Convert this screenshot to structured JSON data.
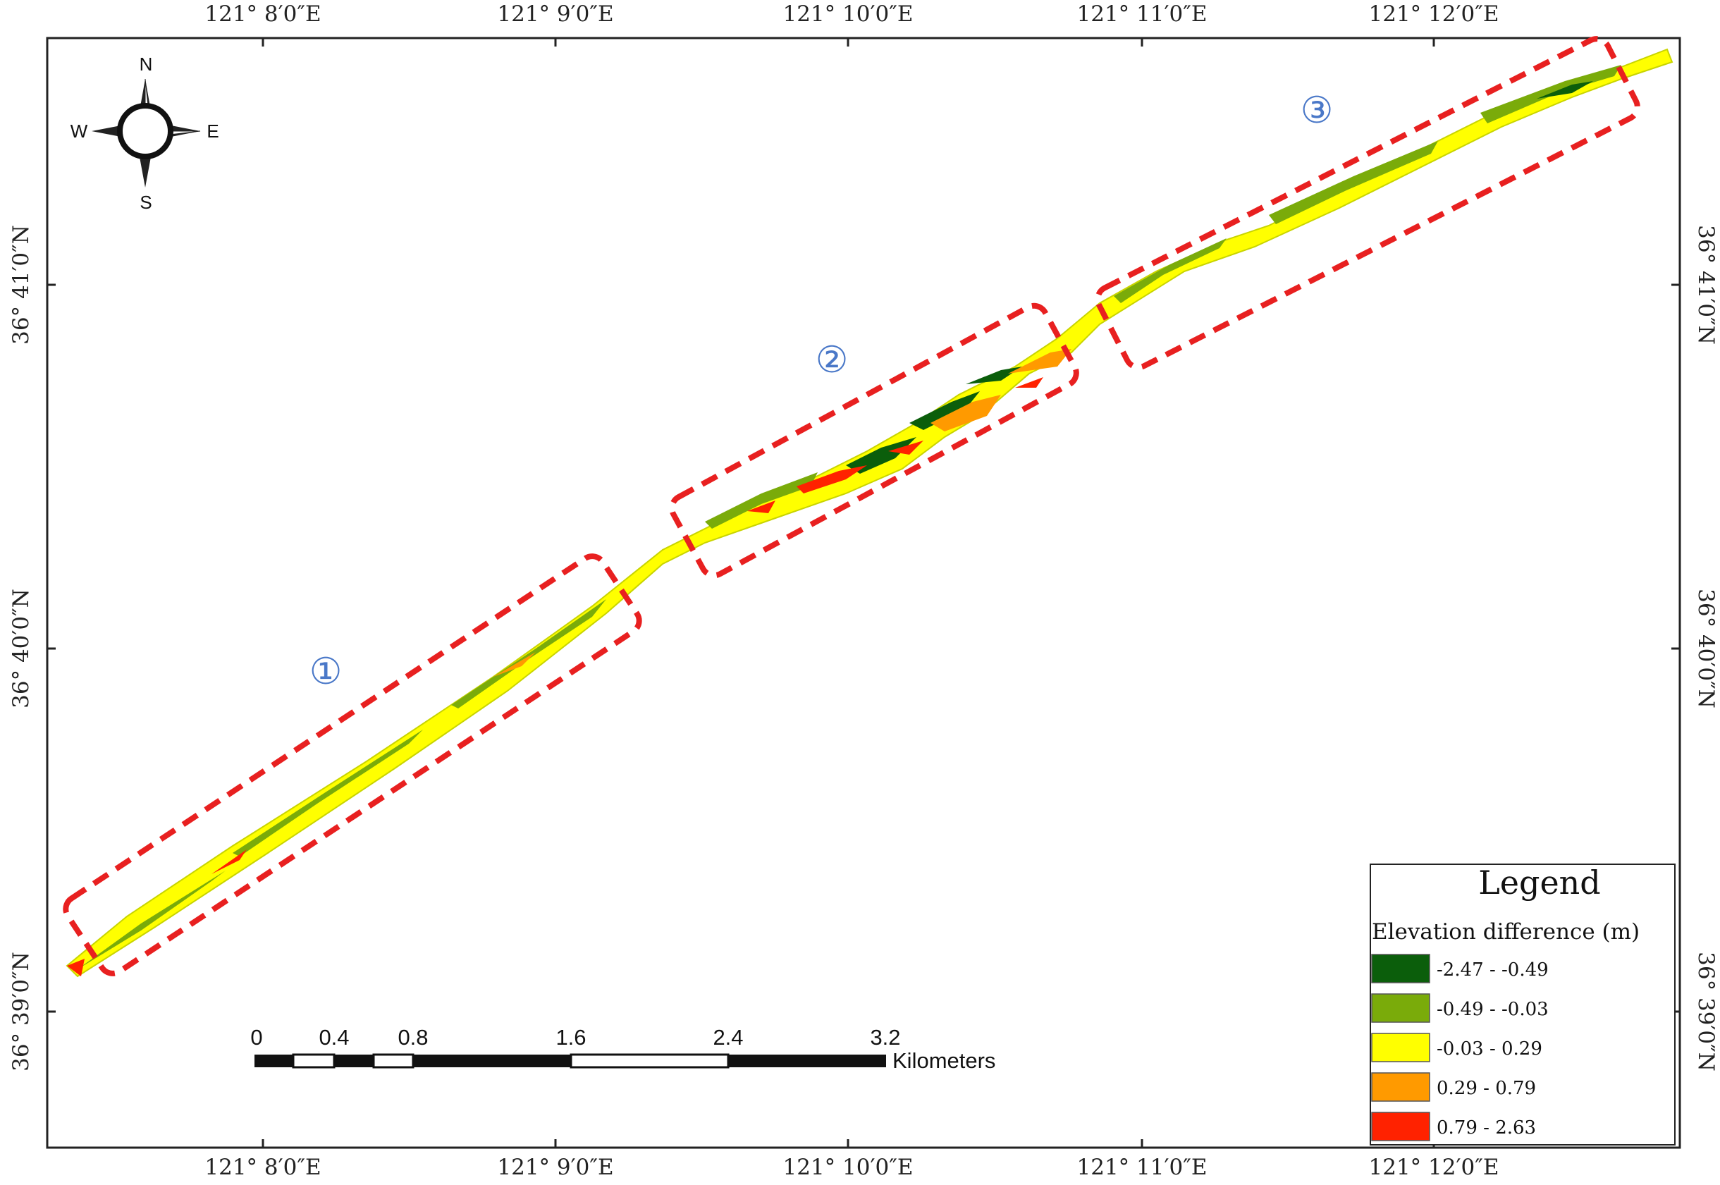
{
  "map": {
    "top_axis_labels": [
      "121° 8′0″E",
      "121° 9′0″E",
      "121° 10′0″E",
      "121° 11′0″E",
      "121° 12′0″E"
    ],
    "bottom_axis_labels": [
      "121° 8′0″E",
      "121° 9′0″E",
      "121° 10′0″E",
      "121° 11′0″E",
      "121° 12′0″E"
    ],
    "left_axis_labels": [
      "36° 41′0″N",
      "36° 40′0″N",
      "36° 39′0″N"
    ],
    "right_axis_labels": [
      "36° 41′0″N",
      "36° 40′0″N",
      "36° 39′0″N"
    ]
  },
  "compass": {
    "north": "N",
    "south": "S",
    "east": "E",
    "west": "W"
  },
  "regions": [
    {
      "label": "①"
    },
    {
      "label": "②"
    },
    {
      "label": "③"
    }
  ],
  "scale_bar": {
    "ticks": [
      "0",
      "0.4",
      "0.8",
      "1.6",
      "2.4",
      "3.2"
    ],
    "unit": "Kilometers"
  },
  "legend": {
    "title": "Legend",
    "subtitle": "Elevation difference (m)",
    "items": [
      {
        "label": "-2.47 - -0.49",
        "color": "#0b5e0b"
      },
      {
        "label": "-0.49 - -0.03",
        "color": "#7aab0a"
      },
      {
        "label": "-0.03 - 0.29",
        "color": "#ffff00"
      },
      {
        "label": "0.29 - 0.79",
        "color": "#ff9a00"
      },
      {
        "label": "0.79 - 2.63",
        "color": "#ff2200"
      }
    ]
  },
  "colors": {
    "region_box": "#e82020",
    "region_label": "#4a78c8"
  }
}
